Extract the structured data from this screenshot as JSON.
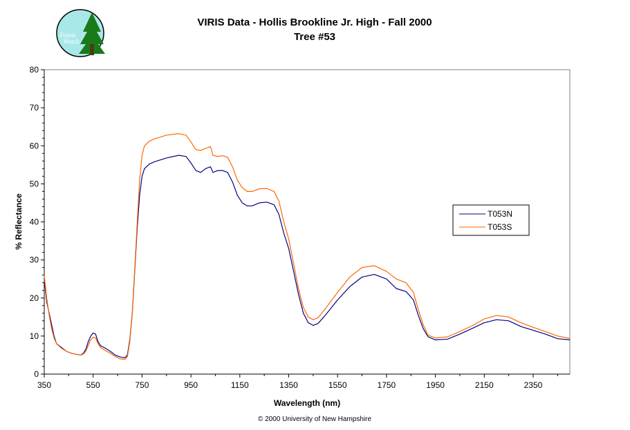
{
  "chart_data": {
    "type": "line",
    "title": "VIRIS Data - Hollis Brookline Jr. High - Fall 2000",
    "subtitle": "Tree #53",
    "xlabel": "Wavelength (nm)",
    "ylabel": "% Reflectance",
    "xlim": [
      350,
      2500
    ],
    "ylim": [
      0,
      80
    ],
    "x_ticks": [
      "350",
      "550",
      "750",
      "950",
      "1150",
      "1350",
      "1550",
      "1750",
      "1950",
      "2150",
      "2350"
    ],
    "y_ticks": [
      "0",
      "10",
      "20",
      "30",
      "40",
      "50",
      "60",
      "70",
      "80"
    ],
    "grid": false,
    "legend_position": "right",
    "series": [
      {
        "name": "T053N",
        "color": "#000080",
        "points": [
          [
            350,
            25
          ],
          [
            360,
            19
          ],
          [
            370,
            16
          ],
          [
            380,
            13
          ],
          [
            390,
            10
          ],
          [
            400,
            8
          ],
          [
            420,
            7
          ],
          [
            440,
            6
          ],
          [
            460,
            5.5
          ],
          [
            480,
            5.2
          ],
          [
            500,
            5
          ],
          [
            510,
            5.5
          ],
          [
            520,
            6.5
          ],
          [
            530,
            8.5
          ],
          [
            540,
            10
          ],
          [
            550,
            10.8
          ],
          [
            560,
            10.5
          ],
          [
            570,
            8.5
          ],
          [
            580,
            7.5
          ],
          [
            600,
            6.8
          ],
          [
            620,
            6
          ],
          [
            640,
            5
          ],
          [
            660,
            4.5
          ],
          [
            680,
            4.3
          ],
          [
            690,
            5
          ],
          [
            700,
            9
          ],
          [
            710,
            16
          ],
          [
            720,
            27
          ],
          [
            730,
            38
          ],
          [
            740,
            47
          ],
          [
            750,
            52
          ],
          [
            760,
            54
          ],
          [
            780,
            55.2
          ],
          [
            800,
            55.8
          ],
          [
            850,
            56.8
          ],
          [
            900,
            57.5
          ],
          [
            930,
            57.2
          ],
          [
            950,
            55.5
          ],
          [
            970,
            53.5
          ],
          [
            990,
            53
          ],
          [
            1010,
            54
          ],
          [
            1030,
            54.5
          ],
          [
            1040,
            53
          ],
          [
            1060,
            53.5
          ],
          [
            1080,
            53.5
          ],
          [
            1100,
            53
          ],
          [
            1120,
            50.5
          ],
          [
            1140,
            47
          ],
          [
            1160,
            45
          ],
          [
            1180,
            44.2
          ],
          [
            1200,
            44.2
          ],
          [
            1230,
            45
          ],
          [
            1260,
            45.2
          ],
          [
            1290,
            44.5
          ],
          [
            1310,
            42
          ],
          [
            1330,
            37
          ],
          [
            1350,
            33
          ],
          [
            1370,
            27
          ],
          [
            1390,
            21
          ],
          [
            1410,
            16
          ],
          [
            1430,
            13.5
          ],
          [
            1450,
            12.8
          ],
          [
            1470,
            13.3
          ],
          [
            1500,
            15.5
          ],
          [
            1550,
            19.5
          ],
          [
            1600,
            23
          ],
          [
            1650,
            25.5
          ],
          [
            1700,
            26.2
          ],
          [
            1750,
            25
          ],
          [
            1790,
            22.5
          ],
          [
            1830,
            21.7
          ],
          [
            1860,
            19.5
          ],
          [
            1880,
            15.5
          ],
          [
            1900,
            12
          ],
          [
            1920,
            9.8
          ],
          [
            1950,
            9
          ],
          [
            2000,
            9.2
          ],
          [
            2050,
            10.5
          ],
          [
            2100,
            12
          ],
          [
            2150,
            13.5
          ],
          [
            2200,
            14.3
          ],
          [
            2250,
            14
          ],
          [
            2300,
            12.5
          ],
          [
            2350,
            11.5
          ],
          [
            2400,
            10.5
          ],
          [
            2450,
            9.3
          ],
          [
            2500,
            9
          ]
        ]
      },
      {
        "name": "T053S",
        "color": "#ff6600",
        "points": [
          [
            350,
            26
          ],
          [
            360,
            20
          ],
          [
            370,
            15.5
          ],
          [
            380,
            12
          ],
          [
            390,
            9.5
          ],
          [
            400,
            8
          ],
          [
            420,
            6.8
          ],
          [
            440,
            6
          ],
          [
            460,
            5.5
          ],
          [
            480,
            5.2
          ],
          [
            500,
            5
          ],
          [
            510,
            5.3
          ],
          [
            520,
            6
          ],
          [
            530,
            7.5
          ],
          [
            540,
            9
          ],
          [
            550,
            9.7
          ],
          [
            560,
            9.5
          ],
          [
            570,
            8
          ],
          [
            580,
            7
          ],
          [
            600,
            6.2
          ],
          [
            620,
            5.5
          ],
          [
            640,
            4.6
          ],
          [
            660,
            4
          ],
          [
            680,
            3.9
          ],
          [
            690,
            4.5
          ],
          [
            700,
            8.5
          ],
          [
            710,
            16
          ],
          [
            720,
            27.5
          ],
          [
            730,
            39.5
          ],
          [
            740,
            51
          ],
          [
            750,
            57.5
          ],
          [
            760,
            60
          ],
          [
            780,
            61.2
          ],
          [
            800,
            61.8
          ],
          [
            850,
            62.8
          ],
          [
            900,
            63.2
          ],
          [
            930,
            62.8
          ],
          [
            950,
            61
          ],
          [
            970,
            59
          ],
          [
            990,
            58.8
          ],
          [
            1010,
            59.3
          ],
          [
            1030,
            59.8
          ],
          [
            1040,
            57.5
          ],
          [
            1060,
            57.2
          ],
          [
            1080,
            57.4
          ],
          [
            1100,
            57
          ],
          [
            1120,
            54.5
          ],
          [
            1140,
            51
          ],
          [
            1160,
            49
          ],
          [
            1180,
            48
          ],
          [
            1200,
            48
          ],
          [
            1230,
            48.7
          ],
          [
            1260,
            48.8
          ],
          [
            1290,
            48
          ],
          [
            1310,
            45.5
          ],
          [
            1330,
            40
          ],
          [
            1350,
            35.5
          ],
          [
            1370,
            29
          ],
          [
            1390,
            22.5
          ],
          [
            1410,
            17.5
          ],
          [
            1430,
            15
          ],
          [
            1450,
            14.3
          ],
          [
            1470,
            14.8
          ],
          [
            1500,
            17.2
          ],
          [
            1550,
            21.5
          ],
          [
            1600,
            25.5
          ],
          [
            1650,
            28
          ],
          [
            1700,
            28.5
          ],
          [
            1750,
            27
          ],
          [
            1790,
            25
          ],
          [
            1830,
            24
          ],
          [
            1860,
            21.5
          ],
          [
            1880,
            17
          ],
          [
            1900,
            13
          ],
          [
            1920,
            10.2
          ],
          [
            1950,
            9.5
          ],
          [
            2000,
            9.8
          ],
          [
            2050,
            11.2
          ],
          [
            2100,
            12.7
          ],
          [
            2150,
            14.5
          ],
          [
            2200,
            15.4
          ],
          [
            2250,
            15
          ],
          [
            2300,
            13.5
          ],
          [
            2350,
            12.3
          ],
          [
            2400,
            11.2
          ],
          [
            2450,
            10
          ],
          [
            2500,
            9.4
          ]
        ]
      }
    ]
  },
  "logo": {
    "line1": "Forest",
    "line2": "Watch"
  },
  "footer": "© 2000 University of New Hampshire"
}
